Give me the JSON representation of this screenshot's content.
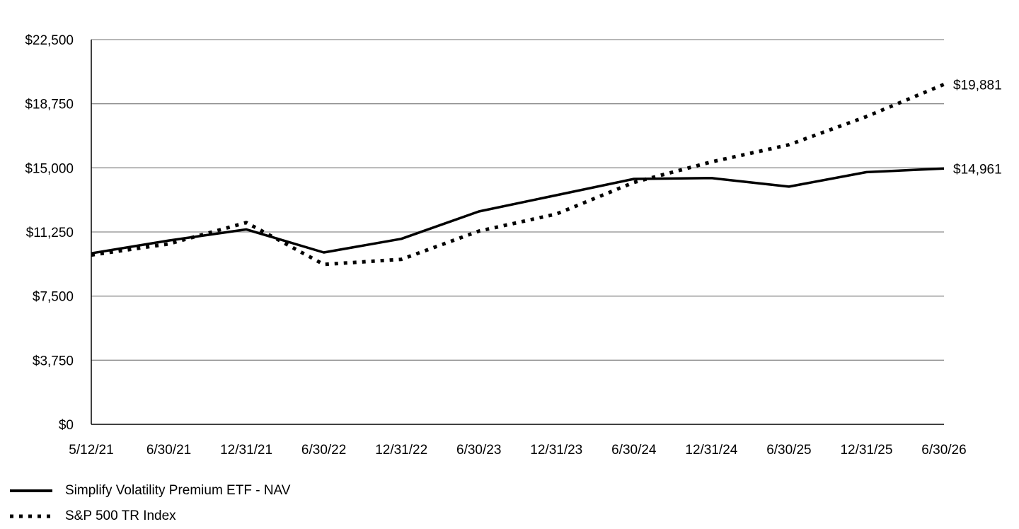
{
  "chart_data": {
    "type": "line",
    "title": "",
    "xlabel": "",
    "ylabel": "",
    "x_ticks": [
      "5/12/21",
      "6/30/21",
      "12/31/21",
      "6/30/22",
      "12/31/22",
      "6/30/23",
      "12/31/23",
      "6/30/24",
      "12/31/24",
      "6/30/25",
      "12/31/25",
      "6/30/26"
    ],
    "y_ticks": [
      "$0",
      "$3,750",
      "$7,500",
      "$11,250",
      "$15,000",
      "$18,750",
      "$22,500"
    ],
    "y_tick_values": [
      0,
      3750,
      7500,
      11250,
      15000,
      18750,
      22500
    ],
    "ylim": [
      0,
      22500
    ],
    "grid": "horizontal",
    "legend_position": "bottom-left",
    "series": [
      {
        "name": "Simplify Volatility Premium ETF - NAV",
        "style": "solid",
        "color": "#000000",
        "values": [
          10000,
          10750,
          11400,
          10050,
          10850,
          12450,
          13400,
          14350,
          14400,
          13900,
          14750,
          14961
        ],
        "end_label": "$14,961"
      },
      {
        "name": "S&P 500 TR Index",
        "style": "dotted",
        "color": "#000000",
        "values": [
          9900,
          10550,
          11800,
          9350,
          9650,
          11300,
          12300,
          14150,
          15350,
          16350,
          18000,
          19881
        ],
        "end_label": "$19,881"
      }
    ]
  }
}
